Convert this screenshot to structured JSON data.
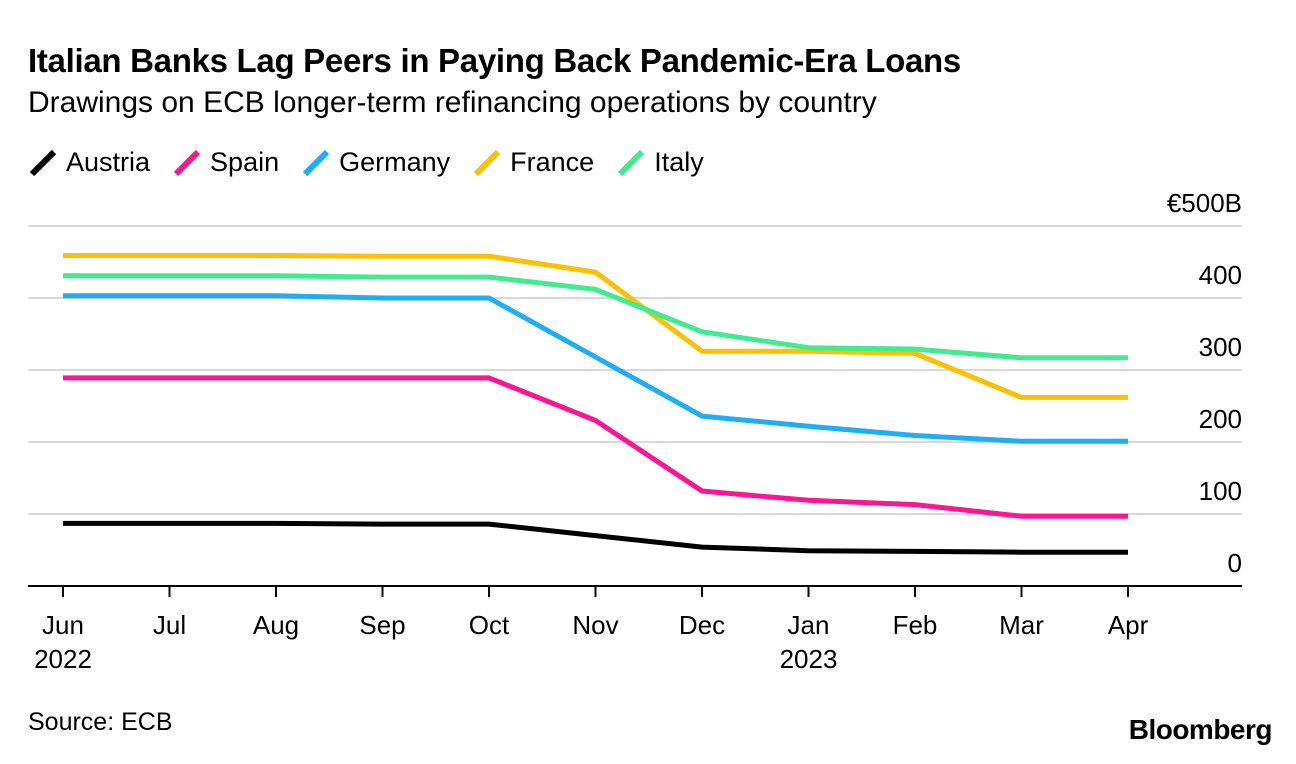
{
  "chart_data": {
    "type": "line",
    "title": "Italian Banks Lag Peers in Paying Back Pandemic-Era Loans",
    "subtitle": "Drawings on ECB longer-term refinancing operations by country",
    "x": [
      "Jun",
      "Jul",
      "Aug",
      "Sep",
      "Oct",
      "Nov",
      "Dec",
      "Jan",
      "Feb",
      "Mar",
      "Apr"
    ],
    "x_year_labels": [
      {
        "index": 0,
        "label": "2022"
      },
      {
        "index": 7,
        "label": "2023"
      }
    ],
    "y_ticks": [
      {
        "value": 0,
        "label": "0"
      },
      {
        "value": 100,
        "label": "100"
      },
      {
        "value": 200,
        "label": "200"
      },
      {
        "value": 300,
        "label": "300"
      },
      {
        "value": 400,
        "label": "400"
      },
      {
        "value": 500,
        "label": "€500B"
      }
    ],
    "ylim": [
      0,
      500
    ],
    "xlabel": "",
    "ylabel": "",
    "grid": true,
    "legend_position": "top-left",
    "series": [
      {
        "name": "Austria",
        "color": "#000000",
        "values": [
          87,
          87,
          87,
          86,
          86,
          70,
          54,
          49,
          48,
          47,
          47
        ]
      },
      {
        "name": "Spain",
        "color": "#ff1493",
        "values": [
          289,
          289,
          289,
          289,
          289,
          230,
          132,
          119,
          113,
          97,
          97
        ]
      },
      {
        "name": "Germany",
        "color": "#1eaef7",
        "values": [
          403,
          403,
          403,
          400,
          400,
          318,
          236,
          222,
          209,
          201,
          201
        ]
      },
      {
        "name": "France",
        "color": "#ffc000",
        "values": [
          459,
          459,
          459,
          458,
          458,
          436,
          326,
          326,
          323,
          262,
          262
        ]
      },
      {
        "name": "Italy",
        "color": "#3fec8e",
        "values": [
          431,
          431,
          431,
          429,
          429,
          412,
          353,
          331,
          329,
          317,
          317
        ]
      }
    ]
  },
  "source": "Source: ECB",
  "brand": "Bloomberg"
}
